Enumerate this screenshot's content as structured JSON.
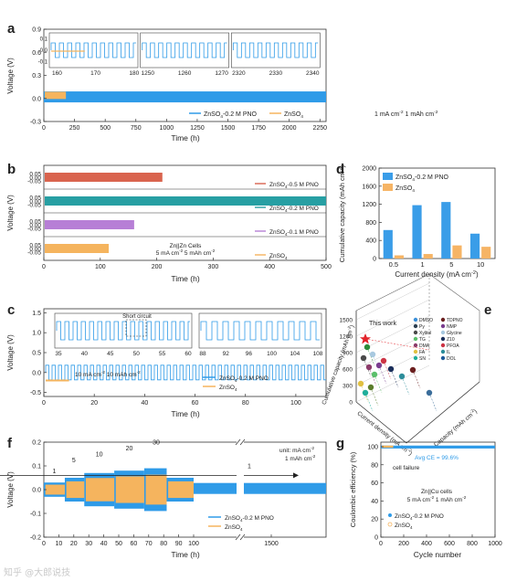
{
  "colors": {
    "blue": "#2f9be8",
    "orange": "#f5b45e",
    "red": "#d9644e",
    "teal": "#279fa3",
    "purple": "#b77fd6"
  },
  "watermark": "知乎 @大郎说技",
  "chart_data": [
    {
      "id": "a",
      "type": "line",
      "ylabel": "Voltage (V)",
      "xlabel": "Time (h)",
      "xlim": [
        0,
        2300
      ],
      "xticks": [
        0,
        250,
        500,
        750,
        1000,
        1250,
        1500,
        1750,
        2000,
        2250
      ],
      "ylim": [
        -0.3,
        0.9
      ],
      "yticks": [
        -0.3,
        0.0,
        0.3,
        0.6,
        0.9
      ],
      "series": [
        {
          "name": "ZnSO4-0.2 M PNO",
          "color": "#2f9be8",
          "x_end": 2300,
          "amplitude": 0.06
        },
        {
          "name": "ZnSO4",
          "color": "#f5b45e",
          "x_end": 180,
          "amplitude": 0.05
        }
      ],
      "annotation": "1 mA cm-2 1 mAh cm-2",
      "insets": [
        {
          "xlim": [
            158,
            181
          ],
          "xticks": [
            160,
            170,
            180
          ]
        },
        {
          "xlim": [
            1248,
            1272
          ],
          "xticks": [
            1250,
            1260,
            1270
          ]
        },
        {
          "xlim": [
            2318,
            2342
          ],
          "xticks": [
            2320,
            2330,
            2340
          ]
        }
      ],
      "inset_yticks": [
        -0.1,
        0.0,
        0.1
      ]
    },
    {
      "id": "b",
      "type": "line",
      "ylabel": "Voltage (V)",
      "xlabel": "Time (h)",
      "xlim": [
        0,
        500
      ],
      "xticks": [
        0,
        100,
        200,
        300,
        400,
        500
      ],
      "yticks": [
        -0.05,
        0.0,
        0.05
      ],
      "series": [
        {
          "name": "ZnSO4-0.5 M PNO",
          "color": "#d9644e",
          "x_end": 210
        },
        {
          "name": "ZnSO4-0.2 M PNO",
          "color": "#279fa3",
          "x_end": 500
        },
        {
          "name": "ZnSO4-0.1 M PNO",
          "color": "#b77fd6",
          "x_end": 160
        },
        {
          "name": "ZnSO4",
          "color": "#f5b45e",
          "x_end": 115
        }
      ],
      "annotation": [
        "Zn||Zn Cells",
        "5 mA cm-2  5 mAh cm-2"
      ]
    },
    {
      "id": "c",
      "type": "line",
      "ylabel": "Voltage (V)",
      "xlabel": "Time (h)",
      "xlim": [
        0,
        112
      ],
      "xticks": [
        0,
        20,
        40,
        60,
        80,
        100
      ],
      "ylim": [
        -0.6,
        1.6
      ],
      "yticks": [
        -0.5,
        0.0,
        0.5,
        1.0,
        1.5
      ],
      "series": [
        {
          "name": "ZnSO4-0.2 M PNO",
          "color": "#2f9be8",
          "x_end": 112
        },
        {
          "name": "ZnSO4",
          "color": "#f5b45e",
          "x_end": 10
        }
      ],
      "annotation": "10 mA cm-2  10 mAh cm-2",
      "insets": [
        {
          "xlim": [
            35,
            60
          ],
          "xticks": [
            35,
            40,
            45,
            50,
            55,
            60
          ],
          "label": "Short circuit"
        },
        {
          "xlim": [
            88,
            108
          ],
          "xticks": [
            88,
            92,
            96,
            100,
            104,
            108
          ]
        }
      ]
    },
    {
      "id": "d",
      "type": "bar",
      "ylabel": "Cumulative capacity (mAh cm-2)",
      "xlabel": "Current density (mA cm-2)",
      "categories": [
        "0.5",
        "1",
        "5",
        "10"
      ],
      "ylim": [
        0,
        2000
      ],
      "yticks": [
        0,
        400,
        800,
        1200,
        1600,
        2000
      ],
      "series": [
        {
          "name": "ZnSO4-0.2 M PNO",
          "color": "#3a9de8",
          "values": [
            630,
            1180,
            1250,
            550
          ]
        },
        {
          "name": "ZnSO4",
          "color": "#f6b465",
          "values": [
            70,
            100,
            290,
            260
          ]
        }
      ]
    },
    {
      "id": "e",
      "type": "scatter",
      "zlabel": "Cumulative capacity (mAh cm-2)",
      "xlabel": "Current density (mA cm-2)",
      "ylabel": "Capacity (mAh cm-2)",
      "zticks": [
        0,
        300,
        600,
        900,
        1200,
        1500
      ],
      "star_label": "This work",
      "legend": [
        "DMSO",
        "Py",
        "Xylitol",
        "TG",
        "DMA",
        "FA",
        "SN",
        "TDPNO",
        "NMP",
        "Glycine",
        "Z10",
        "PFOA",
        "IL",
        "DOL"
      ]
    },
    {
      "id": "f",
      "type": "line",
      "ylabel": "Voltage (V)",
      "xlabel": "Time (h)",
      "xticks": [
        0,
        10,
        20,
        30,
        40,
        50,
        60,
        70,
        80,
        90,
        100,
        1500
      ],
      "ylim": [
        -0.2,
        0.2
      ],
      "yticks": [
        -0.2,
        -0.1,
        0.0,
        0.1,
        0.2
      ],
      "rates": [
        "1",
        "5",
        "10",
        "20",
        "30",
        "1"
      ],
      "series": [
        {
          "name": "ZnSO4-0.2 M PNO",
          "color": "#2f9be8"
        },
        {
          "name": "ZnSO4",
          "color": "#f5b45e"
        }
      ],
      "annotation": [
        "unit: mA cm-2",
        "1 mAh cm-2"
      ]
    },
    {
      "id": "g",
      "type": "scatter",
      "ylabel": "Coulombic efficiency (%)",
      "xlabel": "Cycle number",
      "xlim": [
        0,
        1000
      ],
      "xticks": [
        0,
        200,
        400,
        600,
        800,
        1000
      ],
      "ylim": [
        0,
        105
      ],
      "yticks": [
        0,
        20,
        40,
        60,
        80,
        100
      ],
      "series": [
        {
          "name": "ZnSO4-0.2 M PNO",
          "color": "#2f9be8",
          "value": 99.6
        },
        {
          "name": "ZnSO4",
          "color": "#f5b45e"
        }
      ],
      "annotations": [
        "Avg CE = 99.6%",
        "cell failure",
        "Zn||Cu cells",
        "5 mA cm-2  1 mAh cm-2"
      ]
    }
  ]
}
